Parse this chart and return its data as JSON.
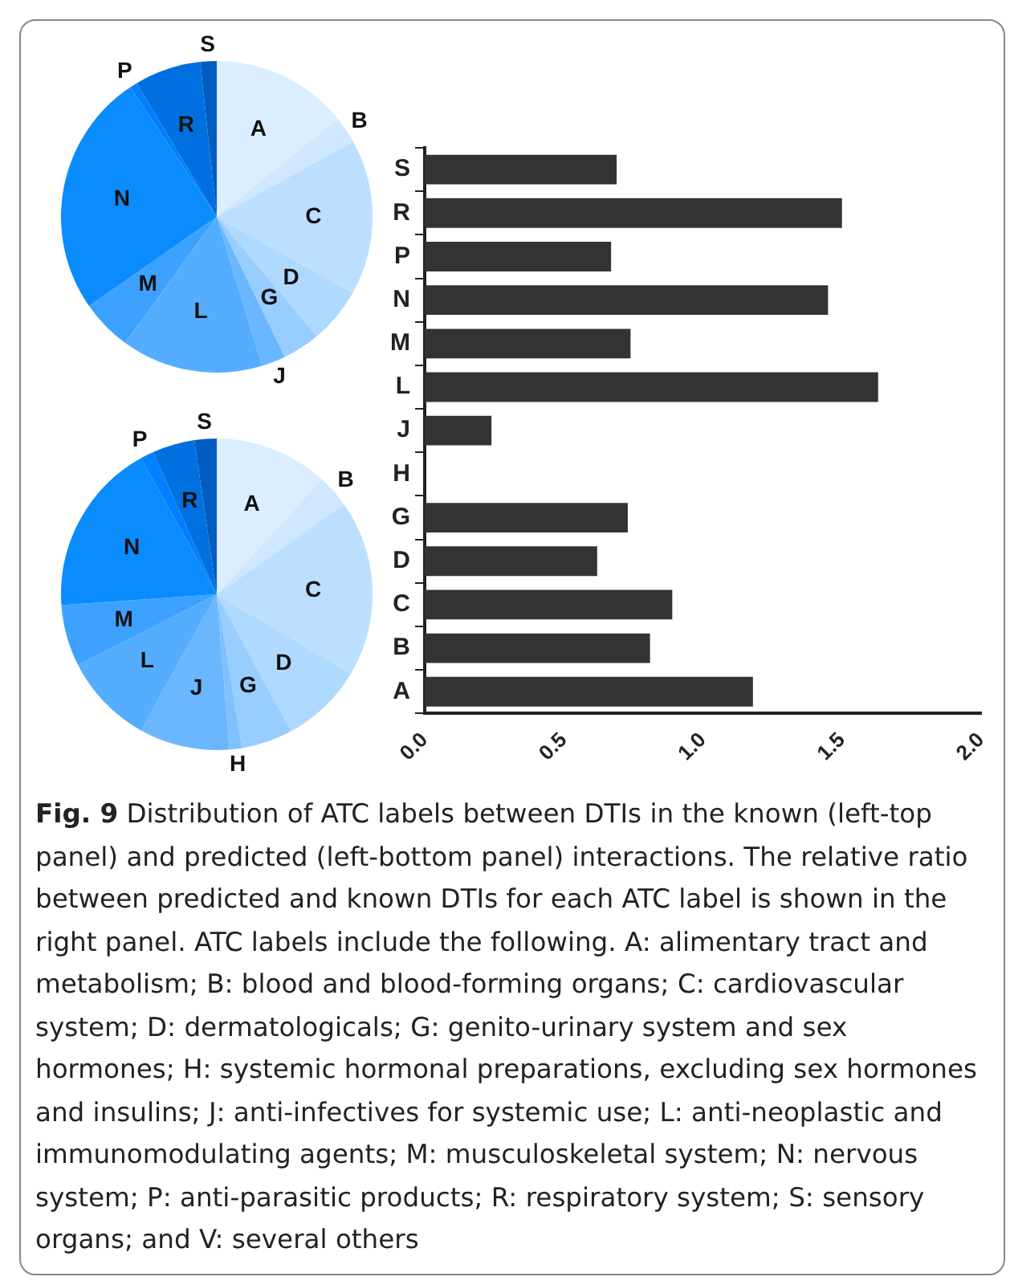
{
  "chart_data": [
    {
      "type": "pie",
      "categories": [
        "A",
        "B",
        "C",
        "D",
        "G",
        "J",
        "L",
        "M",
        "N",
        "P",
        "R",
        "S"
      ],
      "values": [
        14.2,
        2.8,
        16.1,
        5.8,
        3.9,
        2.5,
        14.7,
        5.3,
        25.3,
        0.8,
        6.9,
        1.7
      ],
      "colors": [
        "#dbeeff",
        "#cfe7ff",
        "#bcdfff",
        "#b0d9ff",
        "#98cdff",
        "#6ab7ff",
        "#55adff",
        "#3da2ff",
        "#0a8cff",
        "#0080ff",
        "#0070e0",
        "#005cc0"
      ],
      "legend": false
    },
    {
      "type": "pie",
      "categories": [
        "A",
        "B",
        "C",
        "D",
        "G",
        "H",
        "J",
        "L",
        "M",
        "N",
        "P",
        "R",
        "S"
      ],
      "values": [
        11.8,
        3.4,
        18.3,
        8.6,
        5.3,
        1.3,
        9.4,
        9.4,
        6.4,
        18.0,
        1.4,
        4.4,
        2.3
      ],
      "colors": [
        "#dbeeff",
        "#cfe7ff",
        "#bcdfff",
        "#b0d9ff",
        "#98cdff",
        "#7fc0ff",
        "#6ab7ff",
        "#55adff",
        "#3da2ff",
        "#0a8cff",
        "#0080ff",
        "#0070e0",
        "#005cc0"
      ],
      "legend": false
    },
    {
      "type": "bar",
      "orientation": "horizontal",
      "categories": [
        "S",
        "R",
        "P",
        "N",
        "M",
        "L",
        "J",
        "H",
        "G",
        "D",
        "C",
        "B",
        "A"
      ],
      "values": [
        0.69,
        1.5,
        0.67,
        1.45,
        0.74,
        1.63,
        0.24,
        0,
        0.73,
        0.62,
        0.89,
        0.81,
        1.18
      ],
      "color": "#333333",
      "xlim": [
        0,
        2
      ],
      "xticks": [
        {
          "value": 0,
          "label": "0.0"
        },
        {
          "value": 0.5,
          "label": "0.5"
        },
        {
          "value": 1,
          "label": "1.0"
        },
        {
          "value": 1.5,
          "label": "1.5"
        },
        {
          "value": 2,
          "label": "2.0"
        }
      ],
      "grid": false,
      "legend": false,
      "annotations": [
        "Fig. 9 Distribution of ATC labels between DTIs in the known (left-top panel) and predicted (left-bottom panel) interactions. The relative ratio between predicted and known DTIs for each ATC label is shown in the right panel. ATC labels include the following. A: alimentary tract and metabolism; B: blood and blood-forming organs; C: cardiovascular system; D: dermatologicals; G: genito-urinary system and sex hormones; H: systemic hormonal preparations, excluding sex hormones and insulins; J: anti-infectives for systemic use; L: anti-neoplastic and immunomodulating agents; M: musculoskeletal system; N: nervous system; P: anti-parasitic products; R: respiratory system; S: sensory organs; and V: several others"
      ]
    }
  ]
}
